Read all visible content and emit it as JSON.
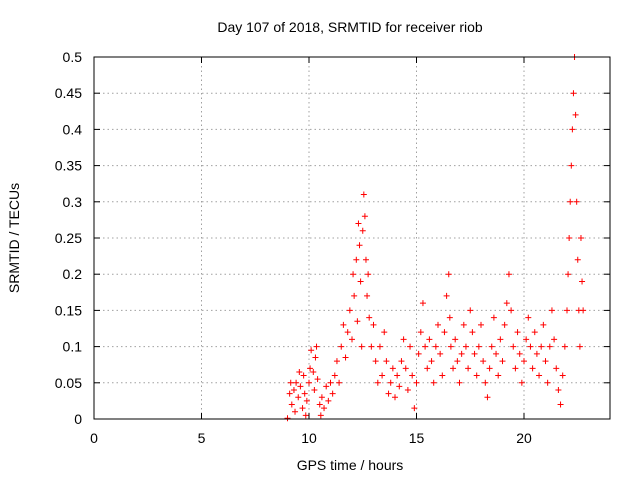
{
  "chart_data": {
    "type": "scatter",
    "title": "Day 107 of 2018, SRMTID for receiver riob",
    "xlabel": "GPS time / hours",
    "ylabel": "SRMTID / TECUs",
    "xlim": [
      0,
      24
    ],
    "ylim": [
      0,
      0.5
    ],
    "x_ticks": [
      0,
      5,
      10,
      15,
      20
    ],
    "x_tick_labels": [
      "0",
      "5",
      "10",
      "15",
      "20"
    ],
    "y_ticks": [
      0,
      0.05,
      0.1,
      0.15,
      0.2,
      0.25,
      0.3,
      0.35,
      0.4,
      0.45,
      0.5
    ],
    "y_tick_labels": [
      "0",
      "0.05",
      "0.1",
      "0.15",
      "0.2",
      "0.25",
      "0.3",
      "0.35",
      "0.4",
      "0.45",
      "0.5"
    ],
    "grid": true,
    "marker": "+",
    "series": [
      {
        "name": "SRMTID",
        "color": "#ff0000",
        "points": [
          [
            9.0,
            0.001
          ],
          [
            9.1,
            0.035
          ],
          [
            9.15,
            0.05
          ],
          [
            9.2,
            0.02
          ],
          [
            9.3,
            0.04
          ],
          [
            9.35,
            0.01
          ],
          [
            9.4,
            0.05
          ],
          [
            9.5,
            0.03
          ],
          [
            9.55,
            0.065
          ],
          [
            9.6,
            0.045
          ],
          [
            9.7,
            0.015
          ],
          [
            9.75,
            0.06
          ],
          [
            9.8,
            0.035
          ],
          [
            9.85,
            0.005
          ],
          [
            9.9,
            0.025
          ],
          [
            10.0,
            0.05
          ],
          [
            10.05,
            0.07
          ],
          [
            10.1,
            0.095
          ],
          [
            10.2,
            0.065
          ],
          [
            10.25,
            0.04
          ],
          [
            10.3,
            0.085
          ],
          [
            10.35,
            0.1
          ],
          [
            10.4,
            0.055
          ],
          [
            10.5,
            0.02
          ],
          [
            10.55,
            0.005
          ],
          [
            10.6,
            0.03
          ],
          [
            10.7,
            0.015
          ],
          [
            10.8,
            0.045
          ],
          [
            10.9,
            0.025
          ],
          [
            11.0,
            0.05
          ],
          [
            11.1,
            0.035
          ],
          [
            11.2,
            0.06
          ],
          [
            11.3,
            0.08
          ],
          [
            11.4,
            0.05
          ],
          [
            11.5,
            0.1
          ],
          [
            11.6,
            0.13
          ],
          [
            11.7,
            0.085
          ],
          [
            11.8,
            0.12
          ],
          [
            11.9,
            0.15
          ],
          [
            12.0,
            0.11
          ],
          [
            12.05,
            0.2
          ],
          [
            12.1,
            0.17
          ],
          [
            12.2,
            0.22
          ],
          [
            12.25,
            0.135
          ],
          [
            12.3,
            0.27
          ],
          [
            12.35,
            0.24
          ],
          [
            12.4,
            0.19
          ],
          [
            12.45,
            0.1
          ],
          [
            12.5,
            0.26
          ],
          [
            12.55,
            0.31
          ],
          [
            12.6,
            0.28
          ],
          [
            12.65,
            0.22
          ],
          [
            12.7,
            0.17
          ],
          [
            12.75,
            0.2
          ],
          [
            12.8,
            0.14
          ],
          [
            12.9,
            0.1
          ],
          [
            13.0,
            0.13
          ],
          [
            13.1,
            0.08
          ],
          [
            13.2,
            0.05
          ],
          [
            13.3,
            0.1
          ],
          [
            13.4,
            0.06
          ],
          [
            13.5,
            0.12
          ],
          [
            13.6,
            0.08
          ],
          [
            13.7,
            0.035
          ],
          [
            13.8,
            0.05
          ],
          [
            13.9,
            0.07
          ],
          [
            14.0,
            0.03
          ],
          [
            14.1,
            0.06
          ],
          [
            14.2,
            0.045
          ],
          [
            14.3,
            0.08
          ],
          [
            14.4,
            0.11
          ],
          [
            14.5,
            0.07
          ],
          [
            14.6,
            0.04
          ],
          [
            14.7,
            0.1
          ],
          [
            14.8,
            0.06
          ],
          [
            14.9,
            0.015
          ],
          [
            15.0,
            0.05
          ],
          [
            15.1,
            0.09
          ],
          [
            15.2,
            0.12
          ],
          [
            15.3,
            0.16
          ],
          [
            15.4,
            0.1
          ],
          [
            15.5,
            0.07
          ],
          [
            15.6,
            0.11
          ],
          [
            15.7,
            0.08
          ],
          [
            15.8,
            0.05
          ],
          [
            15.9,
            0.1
          ],
          [
            16.0,
            0.13
          ],
          [
            16.1,
            0.09
          ],
          [
            16.2,
            0.06
          ],
          [
            16.3,
            0.12
          ],
          [
            16.4,
            0.17
          ],
          [
            16.5,
            0.2
          ],
          [
            16.55,
            0.14
          ],
          [
            16.6,
            0.1
          ],
          [
            16.7,
            0.07
          ],
          [
            16.8,
            0.11
          ],
          [
            16.9,
            0.08
          ],
          [
            17.0,
            0.05
          ],
          [
            17.1,
            0.09
          ],
          [
            17.2,
            0.13
          ],
          [
            17.3,
            0.1
          ],
          [
            17.4,
            0.07
          ],
          [
            17.5,
            0.15
          ],
          [
            17.6,
            0.12
          ],
          [
            17.7,
            0.09
          ],
          [
            17.8,
            0.06
          ],
          [
            17.9,
            0.1
          ],
          [
            18.0,
            0.13
          ],
          [
            18.1,
            0.08
          ],
          [
            18.2,
            0.05
          ],
          [
            18.3,
            0.03
          ],
          [
            18.4,
            0.07
          ],
          [
            18.5,
            0.1
          ],
          [
            18.6,
            0.14
          ],
          [
            18.7,
            0.09
          ],
          [
            18.8,
            0.06
          ],
          [
            18.9,
            0.11
          ],
          [
            19.0,
            0.08
          ],
          [
            19.1,
            0.13
          ],
          [
            19.2,
            0.16
          ],
          [
            19.3,
            0.2
          ],
          [
            19.4,
            0.15
          ],
          [
            19.5,
            0.1
          ],
          [
            19.6,
            0.07
          ],
          [
            19.7,
            0.12
          ],
          [
            19.8,
            0.09
          ],
          [
            19.9,
            0.05
          ],
          [
            20.0,
            0.08
          ],
          [
            20.1,
            0.11
          ],
          [
            20.2,
            0.14
          ],
          [
            20.3,
            0.1
          ],
          [
            20.4,
            0.07
          ],
          [
            20.5,
            0.12
          ],
          [
            20.6,
            0.09
          ],
          [
            20.7,
            0.06
          ],
          [
            20.8,
            0.1
          ],
          [
            20.9,
            0.13
          ],
          [
            21.0,
            0.08
          ],
          [
            21.1,
            0.05
          ],
          [
            21.2,
            0.1
          ],
          [
            21.3,
            0.15
          ],
          [
            21.4,
            0.11
          ],
          [
            21.5,
            0.07
          ],
          [
            21.6,
            0.04
          ],
          [
            21.7,
            0.02
          ],
          [
            21.8,
            0.06
          ],
          [
            21.9,
            0.1
          ],
          [
            22.0,
            0.15
          ],
          [
            22.05,
            0.2
          ],
          [
            22.1,
            0.25
          ],
          [
            22.15,
            0.3
          ],
          [
            22.2,
            0.35
          ],
          [
            22.25,
            0.4
          ],
          [
            22.3,
            0.45
          ],
          [
            22.35,
            0.5
          ],
          [
            22.4,
            0.42
          ],
          [
            22.45,
            0.3
          ],
          [
            22.5,
            0.22
          ],
          [
            22.55,
            0.15
          ],
          [
            22.6,
            0.1
          ],
          [
            22.65,
            0.25
          ],
          [
            22.7,
            0.19
          ],
          [
            22.75,
            0.15
          ]
        ]
      }
    ]
  }
}
